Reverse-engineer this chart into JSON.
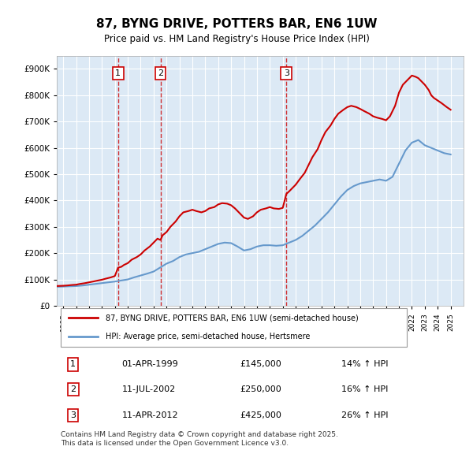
{
  "title": "87, BYNG DRIVE, POTTERS BAR, EN6 1UW",
  "subtitle": "Price paid vs. HM Land Registry's House Price Index (HPI)",
  "legend_line1": "87, BYNG DRIVE, POTTERS BAR, EN6 1UW (semi-detached house)",
  "legend_line2": "HPI: Average price, semi-detached house, Hertsmere",
  "footer": "Contains HM Land Registry data © Crown copyright and database right 2025.\nThis data is licensed under the Open Government Licence v3.0.",
  "transactions": [
    {
      "label": "1",
      "date_str": "01-APR-1999",
      "year": 1999.25,
      "price": 145000,
      "pct": "14%",
      "dir": "↑"
    },
    {
      "label": "2",
      "date_str": "11-JUL-2002",
      "year": 2002.53,
      "price": 250000,
      "pct": "16%",
      "dir": "↑"
    },
    {
      "label": "3",
      "date_str": "11-APR-2012",
      "year": 2012.28,
      "price": 425000,
      "pct": "26%",
      "dir": "↑"
    }
  ],
  "background_color": "#dce9f5",
  "plot_bg_color": "#dce9f5",
  "line_color_price": "#cc0000",
  "line_color_hpi": "#6699cc",
  "vline_color": "#cc0000",
  "grid_color": "#ffffff",
  "ylim": [
    0,
    950000
  ],
  "yticks": [
    0,
    100000,
    200000,
    300000,
    400000,
    500000,
    600000,
    700000,
    800000,
    900000
  ],
  "xmin": 1994.5,
  "xmax": 2026.0,
  "hpi_data": {
    "years": [
      1994.5,
      1995.0,
      1995.5,
      1996.0,
      1996.5,
      1997.0,
      1997.5,
      1998.0,
      1998.5,
      1999.0,
      1999.5,
      2000.0,
      2000.5,
      2001.0,
      2001.5,
      2002.0,
      2002.5,
      2003.0,
      2003.5,
      2004.0,
      2004.5,
      2005.0,
      2005.5,
      2006.0,
      2006.5,
      2007.0,
      2007.5,
      2008.0,
      2008.5,
      2009.0,
      2009.5,
      2010.0,
      2010.5,
      2011.0,
      2011.5,
      2012.0,
      2012.5,
      2013.0,
      2013.5,
      2014.0,
      2014.5,
      2015.0,
      2015.5,
      2016.0,
      2016.5,
      2017.0,
      2017.5,
      2018.0,
      2018.5,
      2019.0,
      2019.5,
      2020.0,
      2020.5,
      2021.0,
      2021.5,
      2022.0,
      2022.5,
      2023.0,
      2023.5,
      2024.0,
      2024.5,
      2025.0
    ],
    "values": [
      72000,
      73000,
      74000,
      75000,
      77000,
      80000,
      83000,
      86000,
      89000,
      92000,
      96000,
      100000,
      108000,
      115000,
      122000,
      130000,
      145000,
      160000,
      170000,
      185000,
      195000,
      200000,
      205000,
      215000,
      225000,
      235000,
      240000,
      238000,
      225000,
      210000,
      215000,
      225000,
      230000,
      230000,
      228000,
      230000,
      240000,
      250000,
      265000,
      285000,
      305000,
      330000,
      355000,
      385000,
      415000,
      440000,
      455000,
      465000,
      470000,
      475000,
      480000,
      475000,
      490000,
      540000,
      590000,
      620000,
      630000,
      610000,
      600000,
      590000,
      580000,
      575000
    ]
  },
  "price_data": {
    "years": [
      1994.5,
      1995.0,
      1995.3,
      1995.7,
      1996.0,
      1996.3,
      1996.7,
      1997.0,
      1997.3,
      1997.7,
      1998.0,
      1998.3,
      1998.7,
      1999.0,
      1999.25,
      1999.5,
      1999.7,
      2000.0,
      2000.3,
      2000.7,
      2001.0,
      2001.3,
      2001.7,
      2002.0,
      2002.3,
      2002.53,
      2002.7,
      2003.0,
      2003.3,
      2003.7,
      2004.0,
      2004.3,
      2004.7,
      2005.0,
      2005.3,
      2005.7,
      2006.0,
      2006.3,
      2006.7,
      2007.0,
      2007.3,
      2007.7,
      2008.0,
      2008.3,
      2008.7,
      2009.0,
      2009.3,
      2009.7,
      2010.0,
      2010.3,
      2010.7,
      2011.0,
      2011.3,
      2011.7,
      2012.0,
      2012.28,
      2012.5,
      2012.7,
      2013.0,
      2013.3,
      2013.7,
      2014.0,
      2014.3,
      2014.7,
      2015.0,
      2015.3,
      2015.7,
      2016.0,
      2016.3,
      2016.7,
      2017.0,
      2017.3,
      2017.7,
      2018.0,
      2018.3,
      2018.7,
      2019.0,
      2019.3,
      2019.7,
      2020.0,
      2020.3,
      2020.7,
      2021.0,
      2021.3,
      2021.7,
      2022.0,
      2022.3,
      2022.5,
      2022.7,
      2023.0,
      2023.3,
      2023.5,
      2023.7,
      2024.0,
      2024.3,
      2024.7,
      2025.0
    ],
    "values": [
      75000,
      76000,
      77000,
      79000,
      80000,
      83000,
      86000,
      89000,
      92000,
      96000,
      99000,
      103000,
      108000,
      113000,
      145000,
      148000,
      155000,
      162000,
      175000,
      185000,
      195000,
      210000,
      225000,
      240000,
      255000,
      250000,
      268000,
      280000,
      300000,
      320000,
      340000,
      355000,
      360000,
      365000,
      360000,
      355000,
      360000,
      370000,
      375000,
      385000,
      390000,
      388000,
      382000,
      370000,
      350000,
      335000,
      330000,
      340000,
      355000,
      365000,
      370000,
      375000,
      370000,
      368000,
      372000,
      425000,
      435000,
      445000,
      460000,
      480000,
      505000,
      535000,
      565000,
      595000,
      630000,
      660000,
      685000,
      710000,
      730000,
      745000,
      755000,
      760000,
      755000,
      748000,
      740000,
      730000,
      720000,
      715000,
      710000,
      705000,
      720000,
      760000,
      810000,
      840000,
      860000,
      875000,
      870000,
      865000,
      855000,
      840000,
      820000,
      800000,
      790000,
      780000,
      770000,
      755000,
      745000
    ]
  }
}
